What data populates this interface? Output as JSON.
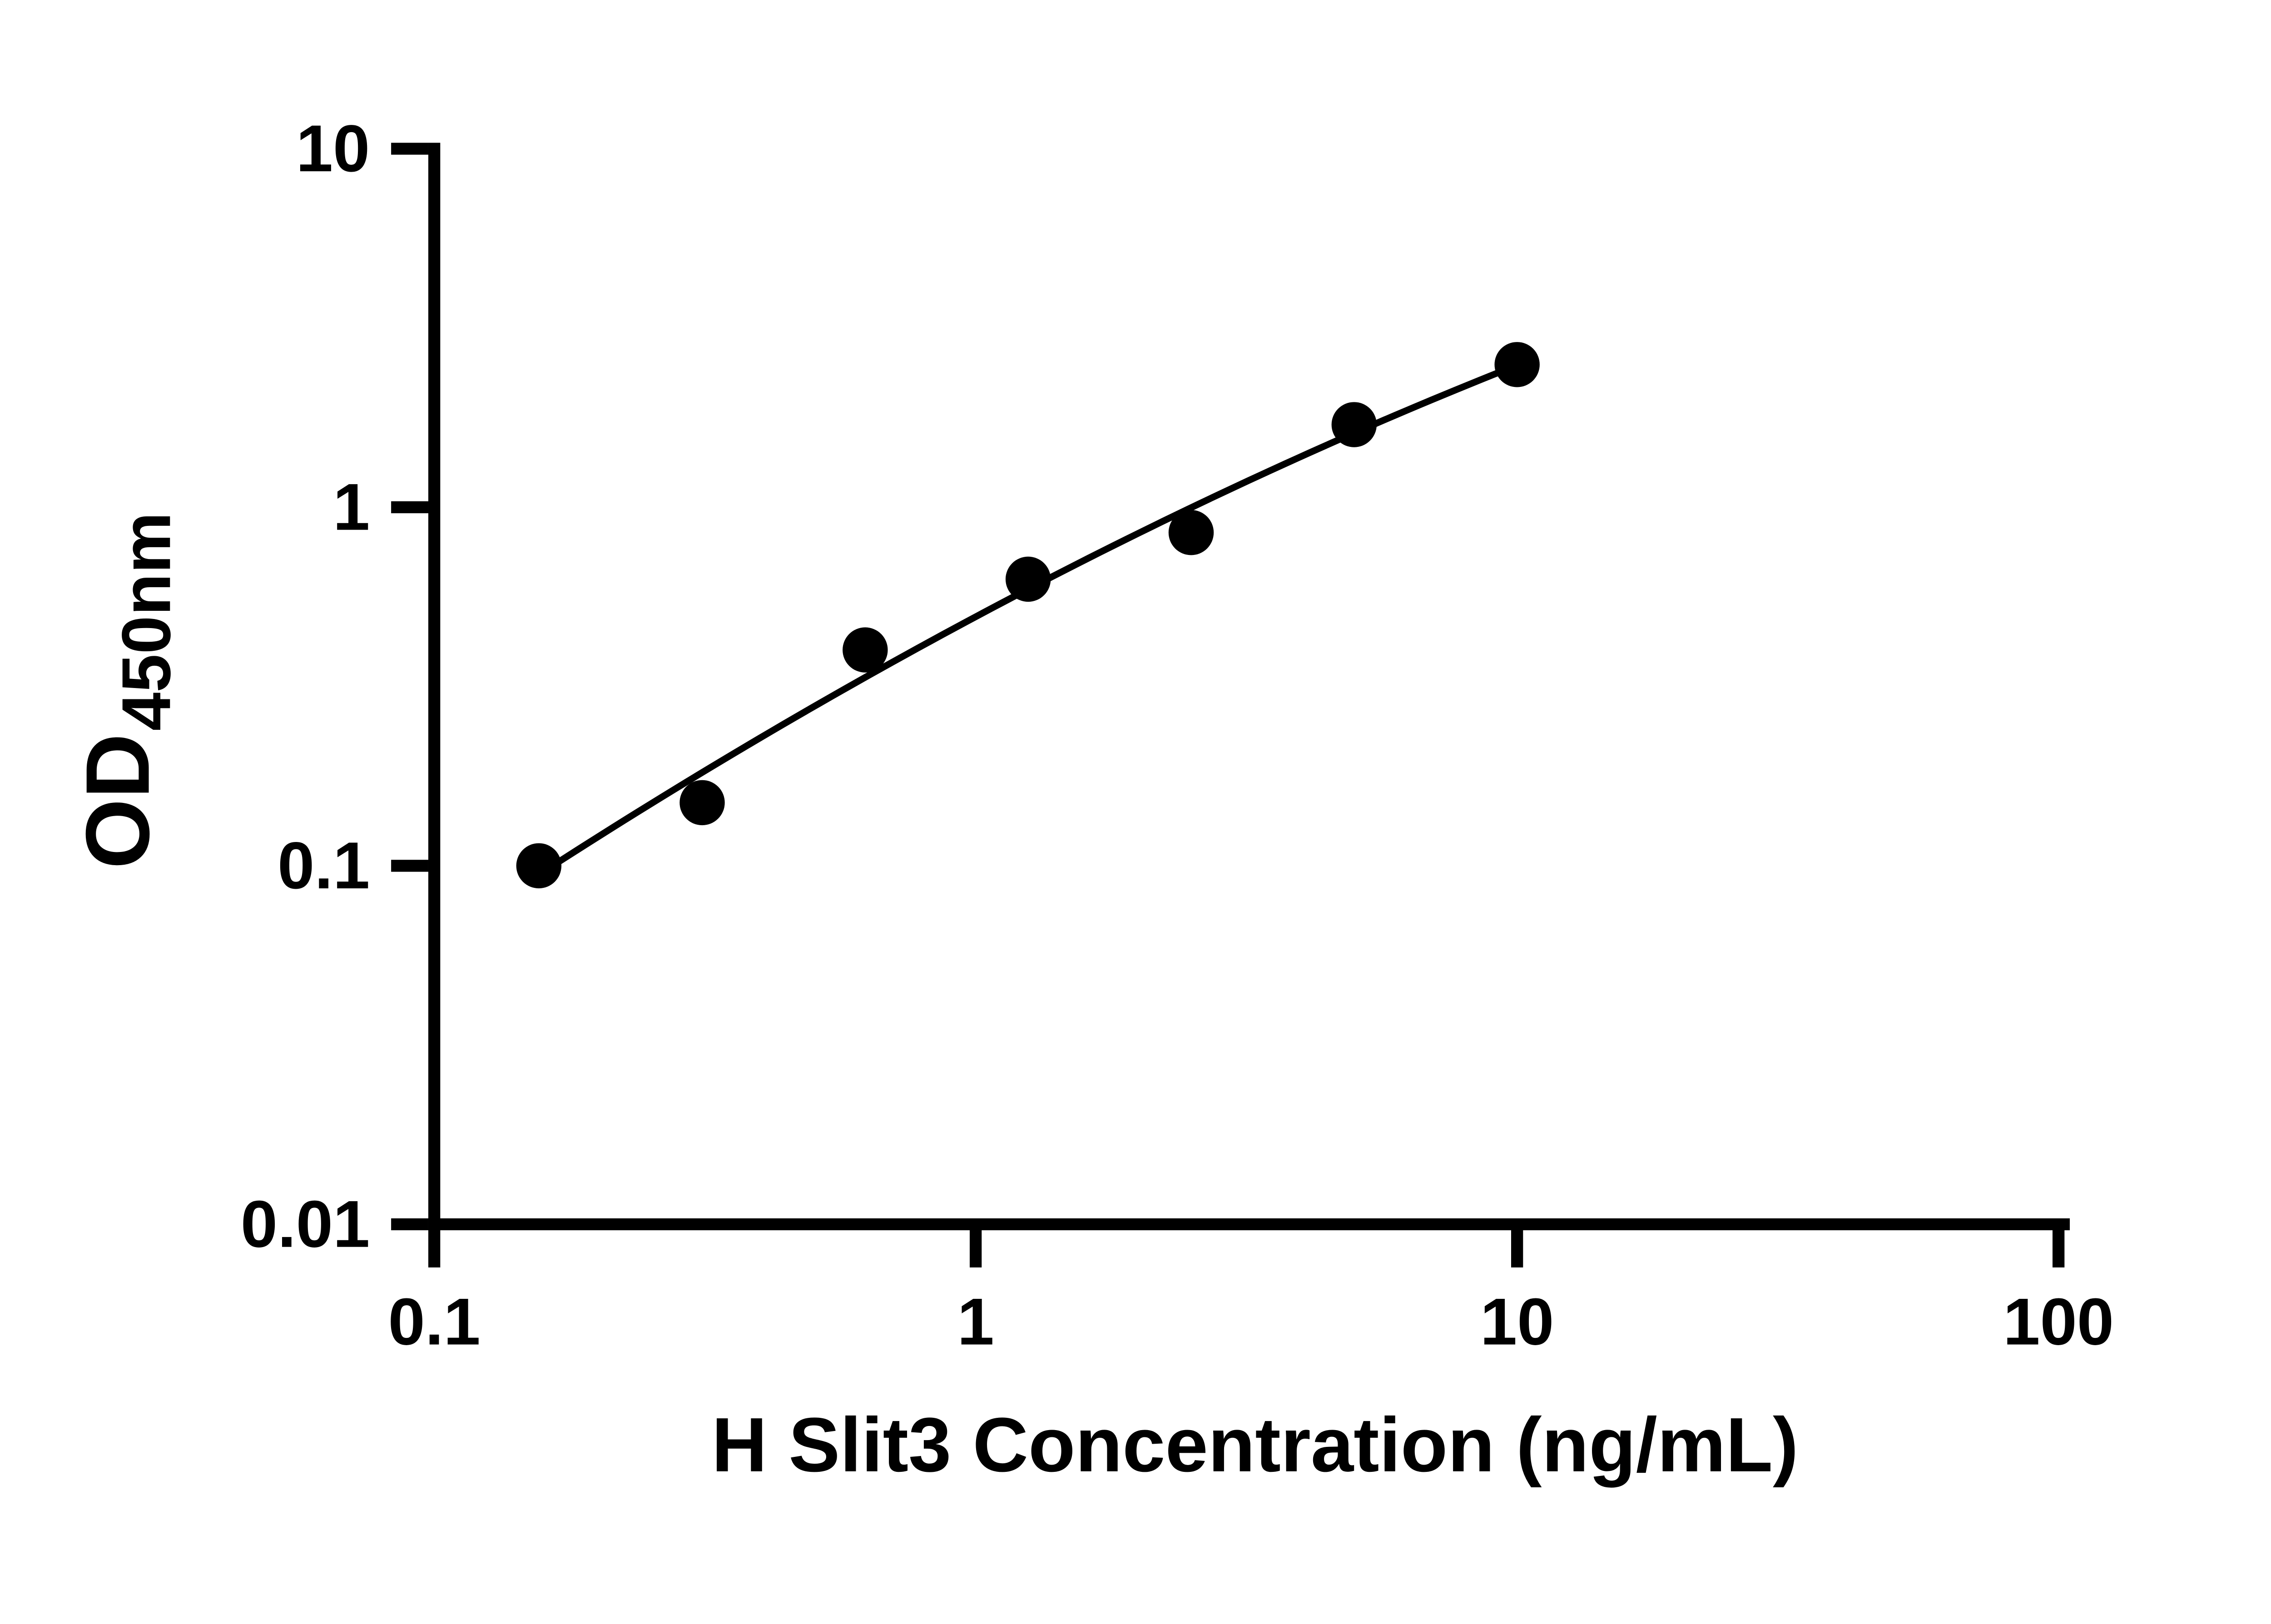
{
  "chart_data": {
    "type": "scatter",
    "title": "",
    "xlabel": "H Slit3 Concentration (ng/mL)",
    "ylabel_main": "OD",
    "ylabel_sub": "450nm",
    "x_scale": "log",
    "y_scale": "log",
    "xlim": [
      0.1,
      100
    ],
    "ylim": [
      0.01,
      10
    ],
    "x_ticks": [
      0.1,
      1,
      10,
      100
    ],
    "x_tick_labels": [
      "0.1",
      "1",
      "10",
      "100"
    ],
    "y_ticks": [
      0.01,
      0.1,
      1,
      10
    ],
    "y_tick_labels": [
      "0.01",
      "0.1",
      "1",
      "10"
    ],
    "grid": false,
    "legend": false,
    "axis_color": "#000000",
    "marker": {
      "shape": "circle",
      "color": "#000000"
    },
    "curve": {
      "style": "smooth-fit",
      "color": "#000000"
    },
    "points": [
      {
        "x": 0.156,
        "y": 0.1
      },
      {
        "x": 0.3125,
        "y": 0.15
      },
      {
        "x": 0.625,
        "y": 0.4
      },
      {
        "x": 1.25,
        "y": 0.63
      },
      {
        "x": 2.5,
        "y": 0.85
      },
      {
        "x": 5,
        "y": 1.7
      },
      {
        "x": 10,
        "y": 2.5
      }
    ]
  }
}
